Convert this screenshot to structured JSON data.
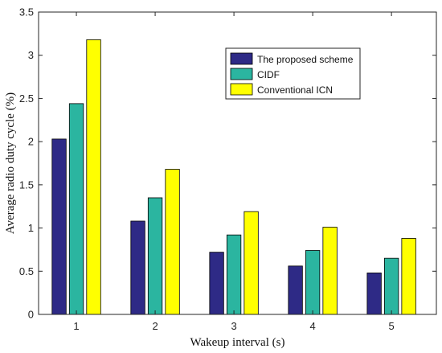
{
  "chart_data": {
    "type": "bar",
    "xlabel": "Wakeup interval (s)",
    "ylabel": "Average radio duty cycle (%)",
    "categories": [
      "1",
      "2",
      "3",
      "4",
      "5"
    ],
    "ylim": [
      0,
      3.5
    ],
    "yticks": [
      0,
      0.5,
      1,
      1.5,
      2,
      2.5,
      3,
      3.5
    ],
    "ytick_labels": [
      "0",
      "0.5",
      "1",
      "1.5",
      "2",
      "2.5",
      "3",
      "3.5"
    ],
    "legend_position": "top-right",
    "series": [
      {
        "name": "The proposed scheme",
        "color": "#2E2A86",
        "values": [
          2.03,
          1.08,
          0.72,
          0.56,
          0.48
        ]
      },
      {
        "name": "CIDF",
        "color": "#2BB5A0",
        "values": [
          2.44,
          1.35,
          0.92,
          0.74,
          0.65
        ]
      },
      {
        "name": "Conventional ICN",
        "color": "#FFFF00",
        "values": [
          3.18,
          1.68,
          1.19,
          1.01,
          0.88
        ]
      }
    ]
  }
}
